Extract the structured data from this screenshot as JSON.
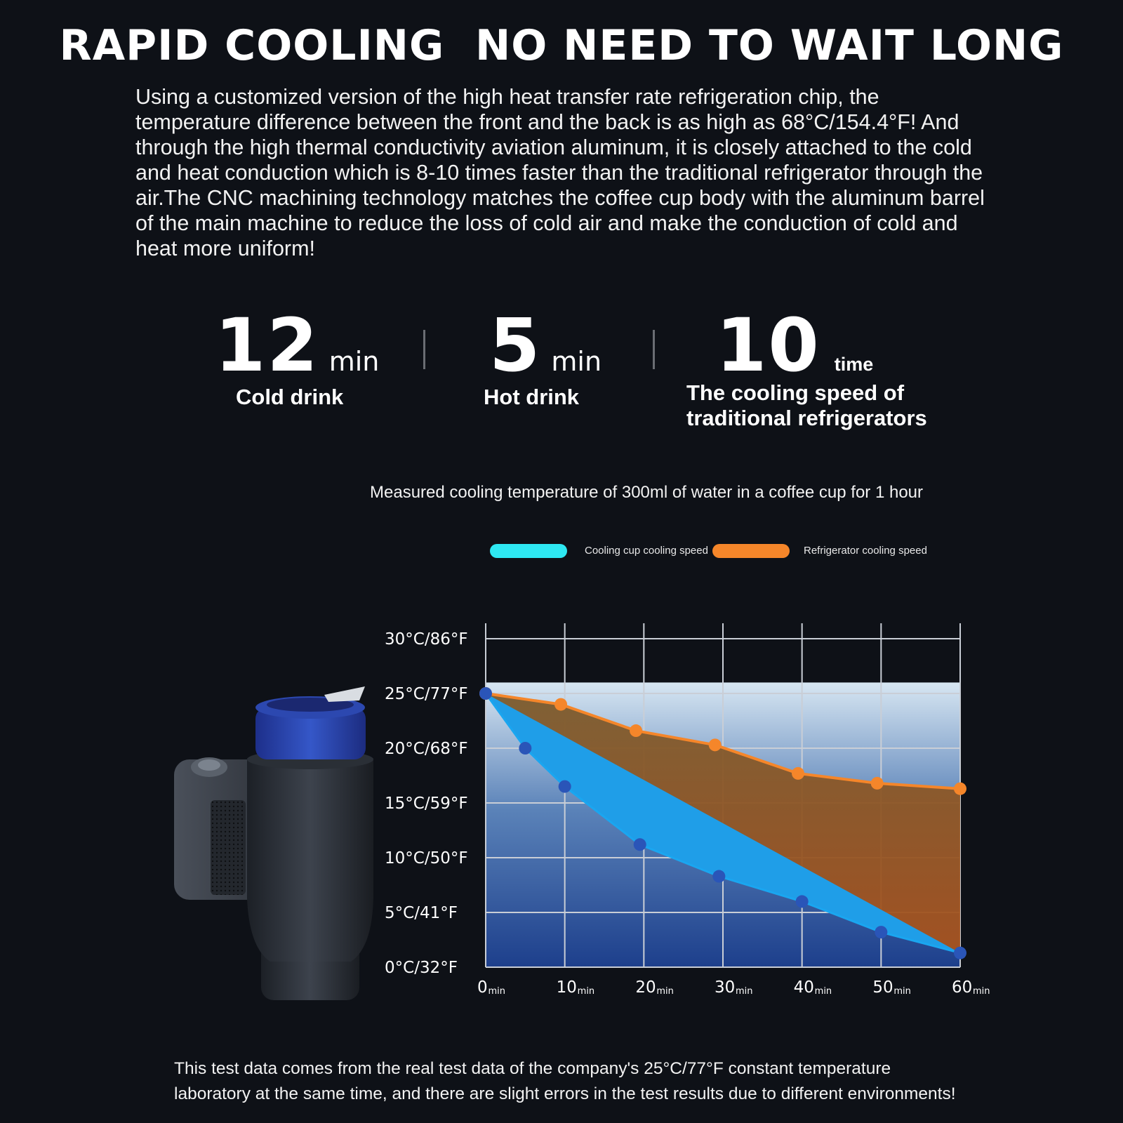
{
  "headline": "RAPID COOLING  NO NEED TO WAIT LONG",
  "intro": "Using a customized version of the high heat transfer rate refrigeration chip, the temperature difference between the front and the back is as high as 68°C/154.4°F! And through the high thermal conductivity aviation aluminum, it is closely attached to the cold and heat conduction which is 8-10 times faster than the traditional refrigerator through the air.The CNC machining technology matches the coffee cup body with the aluminum barrel of the main machine to reduce the loss of cold air and make the conduction of cold and heat more uniform!",
  "stats": [
    {
      "value": "12",
      "unit": "min",
      "label": "Cold drink"
    },
    {
      "value": "5",
      "unit": "min",
      "label": "Hot drink"
    },
    {
      "value": "10",
      "unit": "time",
      "label_line1": "The cooling speed of",
      "label_line2": "traditional refrigerators"
    }
  ],
  "note_line1": "This test data comes from the real test data of the company's 25°C/77°F constant temperature",
  "note_line2": "laboratory at the same time, and there are slight errors in the test results due to different environments!",
  "product_image": {
    "icon": "cup-cooler-device-illustration",
    "colors": {
      "cup": "#2a48b8",
      "body": "#2e333b"
    }
  },
  "chart_data": {
    "type": "area",
    "title": "Measured cooling temperature of 300ml of water in a coffee cup for 1 hour",
    "xlabel": "",
    "ylabel": "",
    "x_unit": "min",
    "x_ticks": [
      0,
      10,
      20,
      30,
      40,
      50,
      60
    ],
    "y_ticks": [
      {
        "value": 0,
        "label": "0°C/32°F"
      },
      {
        "value": 5,
        "label": "5°C/41°F"
      },
      {
        "value": 10,
        "label": "10°C/50°F"
      },
      {
        "value": 15,
        "label": "15°C/59°F"
      },
      {
        "value": 20,
        "label": "20°C/68°F"
      },
      {
        "value": 25,
        "label": "25°C/77°F"
      },
      {
        "value": 30,
        "label": "30°C/86°F"
      }
    ],
    "xlim": [
      0,
      60
    ],
    "ylim": [
      0,
      30
    ],
    "grid": true,
    "legend_position": "top",
    "series": [
      {
        "name": "Cooling cup cooling speed",
        "color": "#2ee8f2",
        "points": [
          [
            0,
            25
          ],
          [
            5,
            20
          ],
          [
            10,
            16.5
          ],
          [
            19.5,
            11.2
          ],
          [
            29.5,
            8.3
          ],
          [
            40,
            6
          ],
          [
            50,
            3.2
          ],
          [
            60,
            1.3
          ]
        ]
      },
      {
        "name": "Refrigerator cooling speed",
        "color": "#f5862a",
        "points": [
          [
            0,
            25
          ],
          [
            9.5,
            24
          ],
          [
            19,
            21.6
          ],
          [
            29,
            20.3
          ],
          [
            39.5,
            17.7
          ],
          [
            49.5,
            16.8
          ],
          [
            60,
            16.3
          ]
        ]
      }
    ]
  }
}
